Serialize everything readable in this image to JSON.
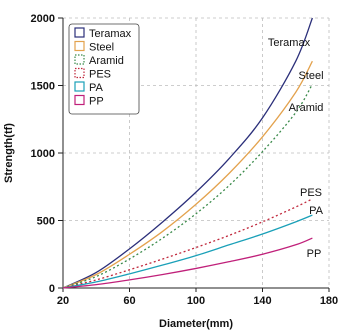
{
  "chart_data": {
    "type": "line",
    "xlabel": "Diameter(mm)",
    "ylabel": "Strength(tf)",
    "xlim": [
      20,
      180
    ],
    "ylim": [
      0,
      2000
    ],
    "xticks": [
      20,
      60,
      100,
      140,
      180
    ],
    "yticks": [
      0,
      500,
      1000,
      1500,
      2000
    ],
    "grid": true,
    "legend_position": "top-left",
    "series": [
      {
        "name": "Teramax",
        "color": "#2b2f7a",
        "dash": "solid",
        "label": "Teramax",
        "x": [
          20,
          40,
          60,
          80,
          100,
          120,
          140,
          160,
          170
        ],
        "y": [
          0,
          115,
          290,
          490,
          710,
          960,
          1260,
          1680,
          2000
        ]
      },
      {
        "name": "Steel",
        "color": "#e3a24d",
        "dash": "solid",
        "label": "Steel",
        "x": [
          20,
          40,
          60,
          80,
          100,
          120,
          140,
          160,
          170
        ],
        "y": [
          0,
          100,
          250,
          420,
          620,
          850,
          1120,
          1450,
          1680
        ]
      },
      {
        "name": "Aramid",
        "color": "#3a8a4a",
        "dash": "dotted",
        "label": "Aramid",
        "x": [
          20,
          40,
          60,
          80,
          100,
          120,
          140,
          160,
          170
        ],
        "y": [
          0,
          85,
          215,
          370,
          550,
          760,
          1010,
          1300,
          1510
        ]
      },
      {
        "name": "PES",
        "color": "#c0283c",
        "dash": "dotted",
        "label": "PES",
        "x": [
          20,
          40,
          60,
          80,
          100,
          120,
          140,
          160,
          170
        ],
        "y": [
          0,
          60,
          135,
          215,
          300,
          390,
          490,
          600,
          660
        ]
      },
      {
        "name": "PA",
        "color": "#1aa0b8",
        "dash": "solid",
        "label": "PA",
        "x": [
          20,
          40,
          60,
          80,
          100,
          120,
          140,
          160,
          170
        ],
        "y": [
          0,
          45,
          105,
          170,
          240,
          320,
          400,
          490,
          540
        ]
      },
      {
        "name": "PP",
        "color": "#c0207a",
        "dash": "solid",
        "label": "PP",
        "x": [
          20,
          40,
          60,
          80,
          100,
          120,
          140,
          160,
          170
        ],
        "y": [
          0,
          25,
          60,
          100,
          145,
          195,
          250,
          320,
          370
        ]
      }
    ]
  }
}
